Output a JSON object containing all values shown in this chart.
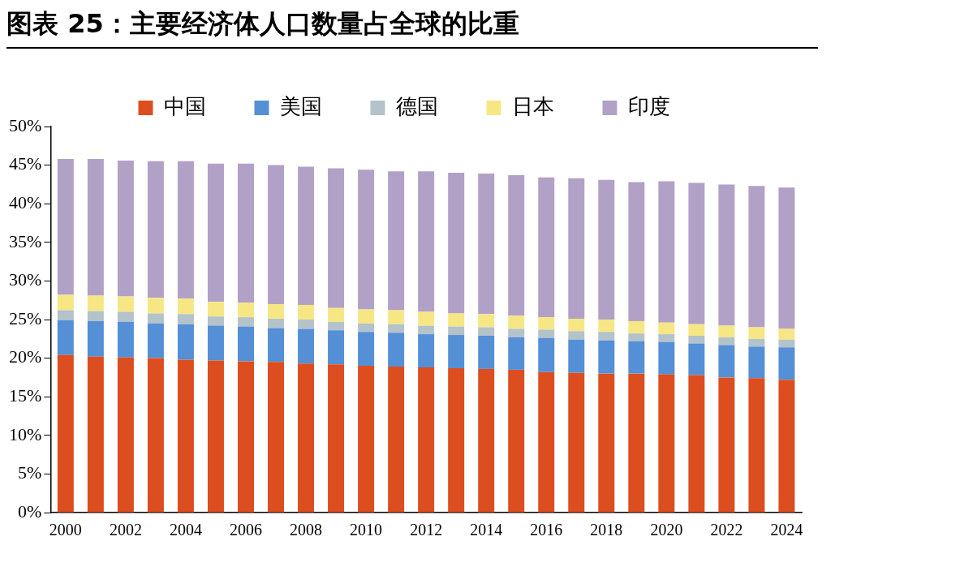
{
  "chart_data": {
    "type": "bar",
    "title": "图表 25：主要经济体人口数量占全球的比重",
    "stacked": true,
    "legend": "top",
    "grid": false,
    "categories": [
      "2000",
      null,
      "2002",
      null,
      "2004",
      null,
      "2006",
      null,
      "2008",
      null,
      "2010",
      null,
      "2012",
      null,
      "2014",
      null,
      "2016",
      null,
      "2018",
      null,
      "2020",
      null,
      "2022",
      null,
      "2024"
    ],
    "ylim": [
      0,
      50
    ],
    "yticks": [
      {
        "value": 0,
        "label": "0%"
      },
      {
        "value": 5,
        "label": "5%"
      },
      {
        "value": 10,
        "label": "10%"
      },
      {
        "value": 15,
        "label": "15%"
      },
      {
        "value": 20,
        "label": "20%"
      },
      {
        "value": 25,
        "label": "25%"
      },
      {
        "value": 30,
        "label": "30%"
      },
      {
        "value": 35,
        "label": "35%"
      },
      {
        "value": 40,
        "label": "40%"
      },
      {
        "value": 45,
        "label": "45%"
      },
      {
        "value": 50,
        "label": "50%"
      }
    ],
    "series": [
      {
        "name": "中国",
        "color": "#dc4e1f",
        "values": [
          20.4,
          20.2,
          20.1,
          20.0,
          19.8,
          19.7,
          19.6,
          19.5,
          19.3,
          19.2,
          19.0,
          18.9,
          18.8,
          18.7,
          18.6,
          18.5,
          18.2,
          18.1,
          18.0,
          18.0,
          17.9,
          17.8,
          17.5,
          17.4,
          17.2
        ]
      },
      {
        "name": "美国",
        "color": "#558fd6",
        "values": [
          4.5,
          4.6,
          4.6,
          4.5,
          4.6,
          4.5,
          4.5,
          4.4,
          4.5,
          4.4,
          4.4,
          4.4,
          4.3,
          4.3,
          4.3,
          4.2,
          4.4,
          4.3,
          4.3,
          4.2,
          4.2,
          4.1,
          4.2,
          4.1,
          4.2
        ]
      },
      {
        "name": "德国",
        "color": "#b4c2c9",
        "values": [
          1.3,
          1.3,
          1.3,
          1.3,
          1.3,
          1.2,
          1.2,
          1.2,
          1.2,
          1.1,
          1.1,
          1.1,
          1.1,
          1.1,
          1.1,
          1.1,
          1.1,
          1.1,
          1.1,
          1.0,
          1.0,
          1.0,
          1.0,
          1.0,
          1.0
        ]
      },
      {
        "name": "日本",
        "color": "#f6e784",
        "values": [
          2.0,
          2.0,
          2.0,
          2.0,
          2.0,
          1.9,
          1.9,
          1.9,
          1.9,
          1.8,
          1.8,
          1.8,
          1.8,
          1.7,
          1.7,
          1.7,
          1.6,
          1.6,
          1.6,
          1.6,
          1.5,
          1.5,
          1.5,
          1.5,
          1.4
        ]
      },
      {
        "name": "印度",
        "color": "#b2a1c7",
        "values": [
          17.6,
          17.7,
          17.6,
          17.7,
          17.8,
          17.9,
          18.0,
          18.0,
          17.9,
          18.1,
          18.1,
          18.0,
          18.2,
          18.2,
          18.2,
          18.2,
          18.1,
          18.2,
          18.1,
          18.0,
          18.3,
          18.3,
          18.3,
          18.3,
          18.3
        ]
      }
    ]
  }
}
